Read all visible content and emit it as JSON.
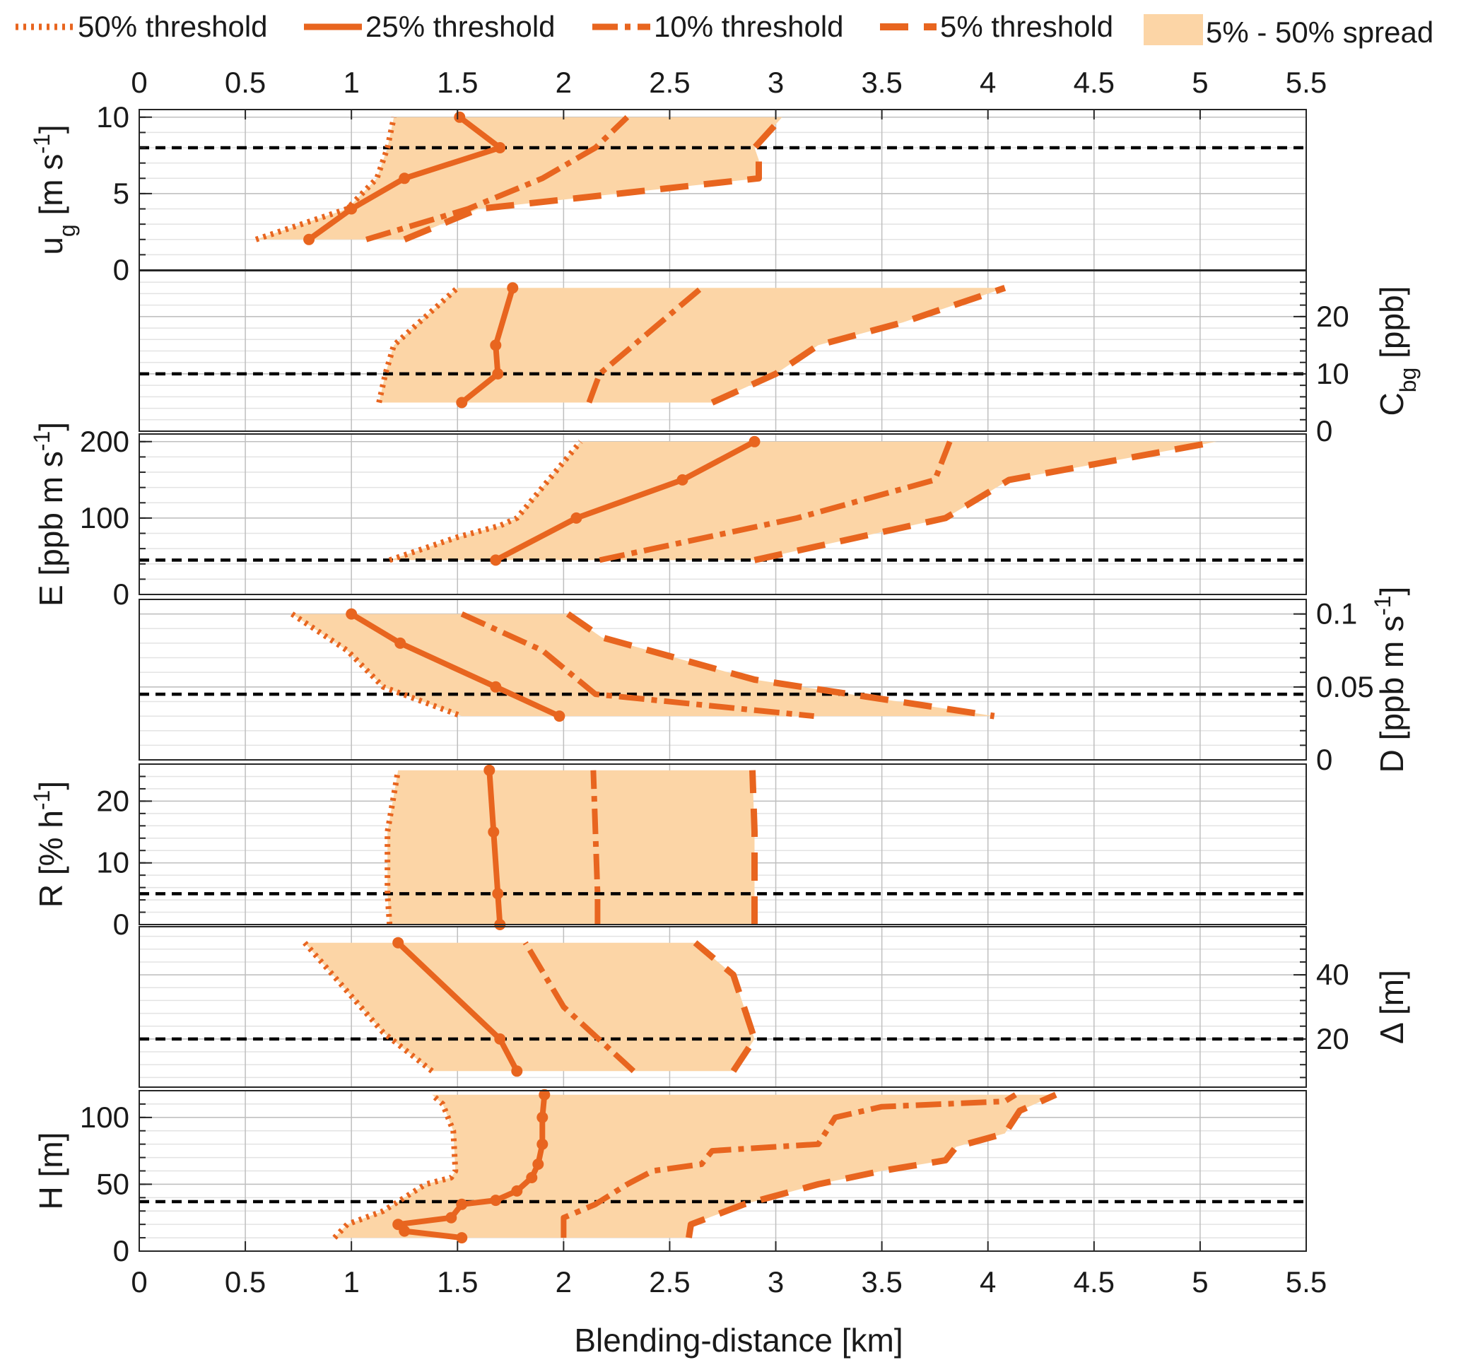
{
  "chart_data": {
    "type": "line",
    "xlabel": "Blending-distance [km]",
    "xlim": [
      0,
      5.5
    ],
    "x_ticks": [
      "0",
      "0.5",
      "1",
      "1.5",
      "2",
      "2.5",
      "3",
      "3.5",
      "4",
      "4.5",
      "5",
      "5.5"
    ],
    "legend": {
      "placement": "top",
      "entries": [
        "50% threshold",
        "25% threshold",
        "10% threshold",
        "5% threshold",
        "5% - 50% spread"
      ]
    },
    "colors": {
      "series": "#e8651f",
      "spread": "#fcd5a6",
      "reference": "#000000",
      "grid": "#bfbfbf"
    },
    "panels": [
      {
        "id": "ug",
        "ylabel_parts": [
          "u",
          "g",
          " [m s",
          "-1",
          "]"
        ],
        "axis_side": "left",
        "ylim": [
          0,
          10.5
        ],
        "yticks": [
          0,
          5,
          10
        ],
        "ytick_labels": [
          "0",
          "5",
          "10"
        ],
        "reference_value": 8,
        "series": {
          "p50": [
            [
              0.55,
              2
            ],
            [
              0.98,
              4
            ],
            [
              1.12,
              6
            ],
            [
              1.17,
              8
            ],
            [
              1.2,
              10
            ]
          ],
          "p25": [
            [
              0.8,
              2
            ],
            [
              1.0,
              4
            ],
            [
              1.25,
              6
            ],
            [
              1.7,
              8
            ],
            [
              1.51,
              10
            ]
          ],
          "p10": [
            [
              1.07,
              2
            ],
            [
              1.55,
              4
            ],
            [
              1.9,
              6
            ],
            [
              2.15,
              8
            ],
            [
              2.3,
              10
            ]
          ],
          "p5": [
            [
              1.25,
              2
            ],
            [
              1.6,
              4
            ],
            [
              2.92,
              6
            ],
            [
              2.92,
              7.2
            ],
            [
              2.9,
              8
            ],
            [
              3.03,
              10
            ]
          ]
        }
      },
      {
        "id": "cbg",
        "ylabel_parts": [
          "C",
          "bg",
          " [ppb]",
          "",
          ""
        ],
        "axis_side": "right",
        "ylim": [
          0,
          28
        ],
        "yticks": [
          0,
          10,
          20
        ],
        "ytick_labels": [
          "0",
          "10",
          "20"
        ],
        "reference_value": 10,
        "series": {
          "p50": [
            [
              1.13,
              5
            ],
            [
              1.16,
              10
            ],
            [
              1.2,
              15
            ],
            [
              1.5,
              25
            ]
          ],
          "p25": [
            [
              1.52,
              5
            ],
            [
              1.69,
              10
            ],
            [
              1.68,
              15
            ],
            [
              1.76,
              25
            ]
          ],
          "p10": [
            [
              2.12,
              5
            ],
            [
              2.17,
              10
            ],
            [
              2.65,
              25
            ]
          ],
          "p5": [
            [
              2.7,
              5
            ],
            [
              3.0,
              10
            ],
            [
              3.2,
              15
            ],
            [
              3.6,
              19
            ],
            [
              4.08,
              25
            ]
          ]
        }
      },
      {
        "id": "e",
        "ylabel_parts": [
          "E [ppb m s",
          "-1",
          "]",
          "",
          ""
        ],
        "axis_side": "left",
        "ylim": [
          0,
          210
        ],
        "yticks": [
          0,
          100,
          200
        ],
        "ytick_labels": [
          "0",
          "100",
          "200"
        ],
        "reference_value": 45,
        "series": {
          "p50": [
            [
              1.18,
              45
            ],
            [
              1.5,
              75
            ],
            [
              1.7,
              90
            ],
            [
              1.78,
              100
            ],
            [
              2.02,
              180
            ],
            [
              2.08,
              200
            ]
          ],
          "p25": [
            [
              1.68,
              45
            ],
            [
              2.06,
              100
            ],
            [
              2.56,
              150
            ],
            [
              2.9,
              200
            ]
          ],
          "p10": [
            [
              2.17,
              45
            ],
            [
              3.1,
              100
            ],
            [
              3.75,
              150
            ],
            [
              3.82,
              200
            ]
          ],
          "p5": [
            [
              2.9,
              45
            ],
            [
              3.8,
              100
            ],
            [
              4.1,
              150
            ],
            [
              5.08,
              200
            ]
          ]
        }
      },
      {
        "id": "d",
        "ylabel_parts": [
          "D [ppb m s",
          "-1",
          "]",
          "",
          ""
        ],
        "axis_side": "right",
        "ylim": [
          0,
          0.11
        ],
        "yticks": [
          0,
          0.05,
          0.1
        ],
        "ytick_labels": [
          "0",
          "0.05",
          "0.1"
        ],
        "reference_value": 0.045,
        "series": {
          "p50": [
            [
              0.72,
              0.1
            ],
            [
              0.98,
              0.075
            ],
            [
              1.15,
              0.05
            ],
            [
              1.52,
              0.03
            ]
          ],
          "p25": [
            [
              1.0,
              0.1
            ],
            [
              1.23,
              0.08
            ],
            [
              1.68,
              0.05
            ],
            [
              1.98,
              0.03
            ]
          ],
          "p10": [
            [
              1.52,
              0.1
            ],
            [
              1.9,
              0.075
            ],
            [
              2.15,
              0.045
            ],
            [
              3.18,
              0.03
            ]
          ],
          "p5": [
            [
              2.02,
              0.1
            ],
            [
              2.18,
              0.084
            ],
            [
              2.9,
              0.055
            ],
            [
              4.03,
              0.03
            ]
          ]
        }
      },
      {
        "id": "r",
        "ylabel_parts": [
          "R [% h",
          "-1",
          "]",
          "",
          ""
        ],
        "axis_side": "left",
        "ylim": [
          0,
          26
        ],
        "yticks": [
          0,
          10,
          20
        ],
        "ytick_labels": [
          "0",
          "10",
          "20"
        ],
        "reference_value": 5,
        "series": {
          "p50": [
            [
              1.18,
              0
            ],
            [
              1.17,
              5
            ],
            [
              1.17,
              15
            ],
            [
              1.22,
              25
            ]
          ],
          "p25": [
            [
              1.7,
              0
            ],
            [
              1.69,
              5
            ],
            [
              1.67,
              15
            ],
            [
              1.65,
              25
            ]
          ],
          "p10": [
            [
              2.16,
              0
            ],
            [
              2.16,
              5
            ],
            [
              2.15,
              15
            ],
            [
              2.14,
              25
            ]
          ],
          "p5": [
            [
              2.9,
              0
            ],
            [
              2.9,
              5
            ],
            [
              2.9,
              15
            ],
            [
              2.89,
              25
            ]
          ]
        }
      },
      {
        "id": "delta",
        "ylabel_parts": [
          "Δ [m]",
          "",
          "",
          "",
          ""
        ],
        "axis_side": "right",
        "ylim": [
          5,
          55
        ],
        "yticks": [
          20,
          40
        ],
        "ytick_labels": [
          "20",
          "40"
        ],
        "reference_value": 20,
        "series": {
          "p50": [
            [
              1.38,
              10
            ],
            [
              1.15,
              22
            ],
            [
              0.78,
              50
            ]
          ],
          "p25": [
            [
              1.78,
              10
            ],
            [
              1.7,
              20
            ],
            [
              1.22,
              50
            ]
          ],
          "p10": [
            [
              2.33,
              10
            ],
            [
              2.0,
              30
            ],
            [
              1.82,
              50
            ]
          ],
          "p5": [
            [
              2.8,
              10
            ],
            [
              2.9,
              20
            ],
            [
              2.8,
              40
            ],
            [
              2.62,
              50
            ]
          ]
        }
      },
      {
        "id": "h",
        "ylabel_parts": [
          "H [m]",
          "",
          "",
          "",
          ""
        ],
        "axis_side": "left",
        "ylim": [
          0,
          120
        ],
        "yticks": [
          0,
          50,
          100
        ],
        "ytick_labels": [
          "0",
          "50",
          "100"
        ],
        "reference_value": 37,
        "series": {
          "p50": [
            [
              0.92,
              10
            ],
            [
              0.98,
              20
            ],
            [
              1.15,
              30
            ],
            [
              1.25,
              40
            ],
            [
              1.35,
              50
            ],
            [
              1.47,
              55
            ],
            [
              1.49,
              60
            ],
            [
              1.48,
              90
            ],
            [
              1.43,
              110
            ],
            [
              1.38,
              117
            ]
          ],
          "p25": [
            [
              1.52,
              10
            ],
            [
              1.25,
              15
            ],
            [
              1.22,
              20
            ],
            [
              1.47,
              25
            ],
            [
              1.52,
              35
            ],
            [
              1.68,
              38
            ],
            [
              1.78,
              45
            ],
            [
              1.85,
              55
            ],
            [
              1.88,
              65
            ],
            [
              1.9,
              80
            ],
            [
              1.9,
              100
            ],
            [
              1.91,
              117
            ]
          ],
          "p10": [
            [
              2.0,
              10
            ],
            [
              2.0,
              25
            ],
            [
              2.15,
              35
            ],
            [
              2.3,
              50
            ],
            [
              2.42,
              60
            ],
            [
              2.65,
              65
            ],
            [
              2.7,
              75
            ],
            [
              3.2,
              80
            ],
            [
              3.28,
              100
            ],
            [
              3.5,
              108
            ],
            [
              4.08,
              112
            ],
            [
              4.13,
              117
            ]
          ],
          "p5": [
            [
              2.59,
              10
            ],
            [
              2.6,
              20
            ],
            [
              2.85,
              35
            ],
            [
              3.2,
              50
            ],
            [
              3.5,
              60
            ],
            [
              3.8,
              68
            ],
            [
              3.85,
              78
            ],
            [
              4.08,
              88
            ],
            [
              4.15,
              105
            ],
            [
              4.32,
              117
            ]
          ]
        }
      }
    ]
  }
}
